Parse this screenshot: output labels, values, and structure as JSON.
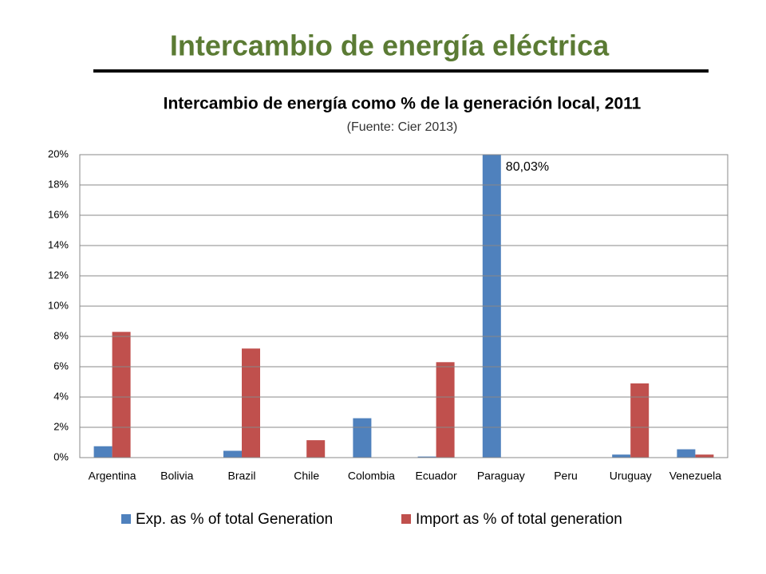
{
  "title": "Intercambio de energía eléctrica",
  "chart_data": {
    "type": "bar",
    "title": "Intercambio de energía como % de la generación local, 2011",
    "subtitle": "(Fuente: Cier 2013)",
    "categories": [
      "Argentina",
      "Bolivia",
      "Brazil",
      "Chile",
      "Colombia",
      "Ecuador",
      "Paraguay",
      "Peru",
      "Uruguay",
      "Venezuela"
    ],
    "series": [
      {
        "name": "Exp. as % of total Generation",
        "color": "#4f81bd",
        "values": [
          0.75,
          0,
          0.45,
          0,
          2.6,
          0.07,
          80.03,
          0,
          0.2,
          0.55
        ],
        "value_labels": [
          null,
          null,
          null,
          null,
          null,
          null,
          "80,03%",
          null,
          null,
          null
        ]
      },
      {
        "name": "Import as % of total generation",
        "color": "#c0504d",
        "values": [
          8.3,
          0,
          7.2,
          1.15,
          0,
          6.3,
          0,
          0,
          4.9,
          0.2
        ]
      }
    ],
    "ylim": [
      0,
      20
    ],
    "yticks": [
      {
        "value": 0,
        "label": "0%"
      },
      {
        "value": 2,
        "label": "2%"
      },
      {
        "value": 4,
        "label": "4%"
      },
      {
        "value": 6,
        "label": "6%"
      },
      {
        "value": 8,
        "label": "8%"
      },
      {
        "value": 10,
        "label": "10%"
      },
      {
        "value": 12,
        "label": "12%"
      },
      {
        "value": 14,
        "label": "14%"
      },
      {
        "value": 16,
        "label": "16%"
      },
      {
        "value": 18,
        "label": "18%"
      },
      {
        "value": 20,
        "label": "20%"
      }
    ],
    "grid": true,
    "legend": "bottom"
  }
}
